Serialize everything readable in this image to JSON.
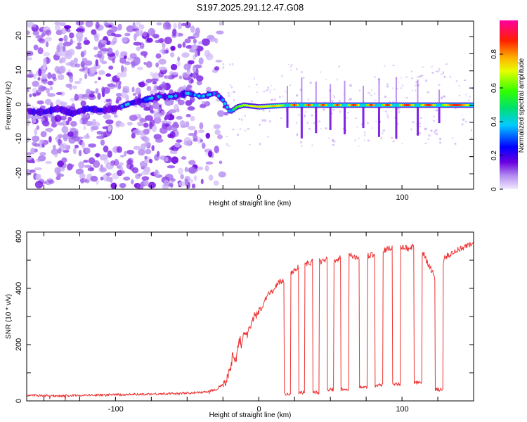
{
  "title": "S197.2025.291.12.47.G08",
  "chart_data": [
    {
      "type": "heatmap",
      "xlabel": "Height of straight line (km)",
      "ylabel": "Frequency (Hz)",
      "xlim": [
        -162,
        150
      ],
      "ylim": [
        -24.5,
        24.5
      ],
      "xticks": [
        -100,
        0,
        100
      ],
      "yticks": [
        -20,
        -10,
        0,
        10,
        20
      ],
      "centerline": [
        {
          "x": -150,
          "f": -2.0
        },
        {
          "x": -140,
          "f": -1.0
        },
        {
          "x": -130,
          "f": -2.5
        },
        {
          "x": -120,
          "f": -1.0
        },
        {
          "x": -110,
          "f": -1.5
        },
        {
          "x": -100,
          "f": -1.0
        },
        {
          "x": -90,
          "f": 0.5
        },
        {
          "x": -80,
          "f": 1.5
        },
        {
          "x": -70,
          "f": 2.5
        },
        {
          "x": -60,
          "f": 2.5
        },
        {
          "x": -50,
          "f": 3.5
        },
        {
          "x": -40,
          "f": 2.5
        },
        {
          "x": -30,
          "f": 3.5
        },
        {
          "x": -25,
          "f": 1.5
        },
        {
          "x": -20,
          "f": -2.0
        },
        {
          "x": -15,
          "f": -0.5
        },
        {
          "x": -10,
          "f": 0.0
        },
        {
          "x": 0,
          "f": -0.5
        },
        {
          "x": 20,
          "f": 0.0
        },
        {
          "x": 150,
          "f": 0.0
        }
      ],
      "colorbar": {
        "label": "Normalized spectral amplitude",
        "range": [
          0,
          1
        ],
        "ticks": [
          0.0,
          0.2,
          0.4,
          0.6,
          0.8
        ]
      }
    },
    {
      "type": "line",
      "xlabel": "Height of straight line (km)",
      "ylabel": "SNR (10 * v/v)",
      "xlim": [
        -162,
        150
      ],
      "ylim": [
        0,
        600
      ],
      "xticks": [
        -100,
        0,
        100
      ],
      "yticks": [
        0,
        200,
        400,
        600
      ],
      "series": [
        {
          "name": "SNR",
          "color": "#ee3333",
          "x": [
            -162,
            -140,
            -120,
            -100,
            -80,
            -60,
            -50,
            -40,
            -30,
            -25,
            -20,
            -18,
            -16,
            -14,
            -12,
            -10,
            -8,
            -5,
            -2,
            0,
            3,
            6,
            10,
            14,
            18,
            22,
            26,
            30,
            35,
            40,
            45,
            50,
            55,
            60,
            70,
            80,
            90,
            100,
            105,
            110,
            115,
            120,
            125,
            130,
            140,
            150
          ],
          "values": [
            20,
            18,
            20,
            22,
            24,
            26,
            28,
            30,
            40,
            60,
            100,
            180,
            140,
            220,
            200,
            260,
            220,
            280,
            300,
            320,
            340,
            380,
            390,
            420,
            430,
            450,
            470,
            480,
            490,
            500,
            495,
            510,
            500,
            520,
            510,
            520,
            540,
            550,
            540,
            560,
            520,
            470,
            420,
            510,
            540,
            560
          ]
        }
      ],
      "dropouts": [
        {
          "x": 20,
          "snr": 25
        },
        {
          "x": 30,
          "snr": 30
        },
        {
          "x": 40,
          "snr": 30
        },
        {
          "x": 50,
          "snr": 40
        },
        {
          "x": 60,
          "snr": 40
        },
        {
          "x": 73,
          "snr": 50
        },
        {
          "x": 84,
          "snr": 55
        },
        {
          "x": 96,
          "snr": 60
        },
        {
          "x": 111,
          "snr": 65
        },
        {
          "x": 126,
          "snr": 40
        }
      ]
    }
  ]
}
